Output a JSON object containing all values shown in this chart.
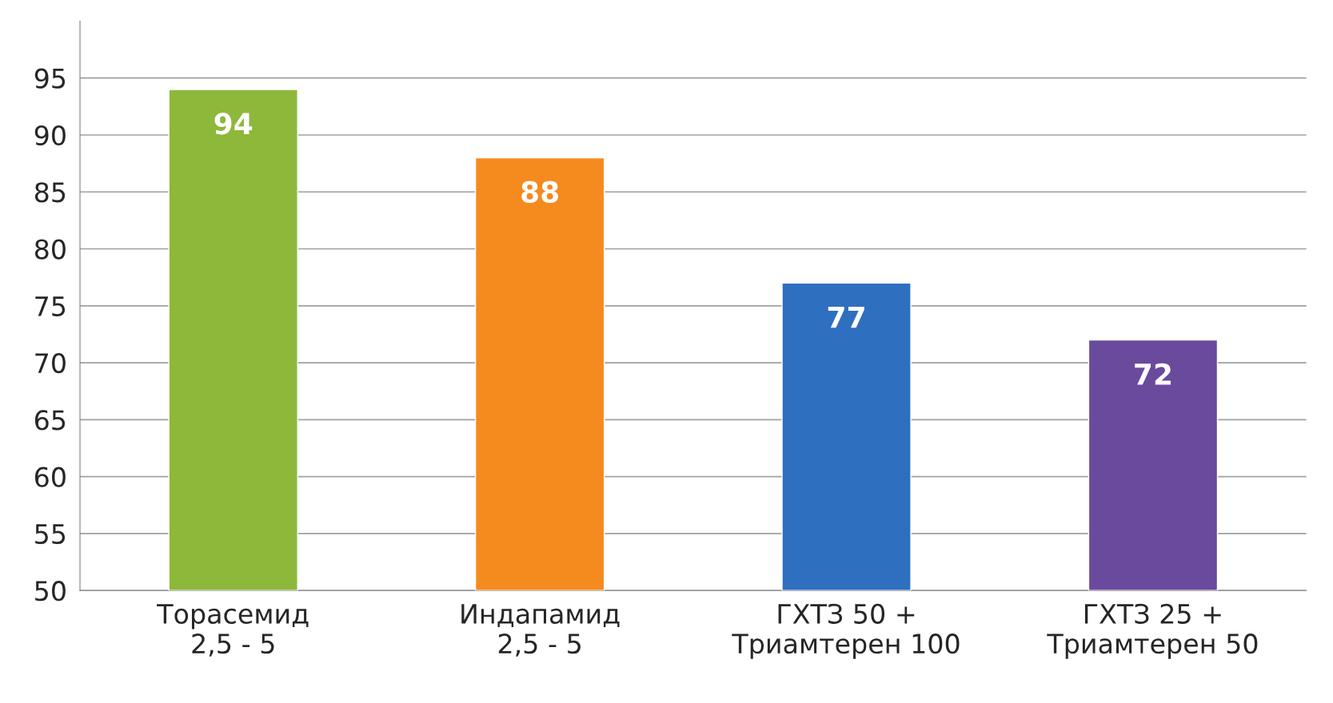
{
  "chart_data": {
    "type": "bar",
    "categories": [
      "Торасемид\n2,5 - 5",
      "Индапамид\n2,5 - 5",
      "ГХТЗ 50 +\nТриамтерен 100",
      "ГХТЗ 25 +\nТриамтерен 50"
    ],
    "values": [
      94,
      88,
      77,
      72
    ],
    "colors": [
      "#8db83a",
      "#f58a1f",
      "#2f6fbf",
      "#6a4a9c"
    ],
    "ylim": [
      50,
      100
    ],
    "yticks": [
      50,
      55,
      60,
      65,
      70,
      75,
      80,
      85,
      90,
      95
    ],
    "grid": "y",
    "data_labels": true
  }
}
